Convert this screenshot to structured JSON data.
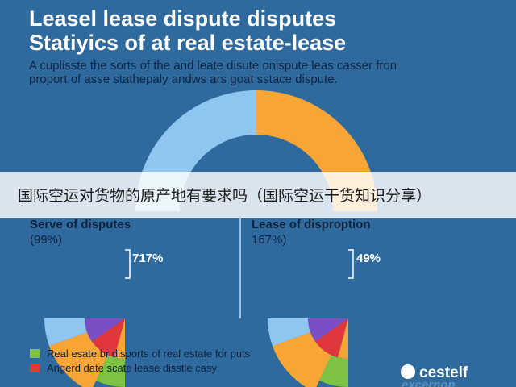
{
  "header": {
    "title": [
      "Leasel lease dispute disputes",
      "Statiyics of at real estate-lease"
    ],
    "subtitle": [
      "A cuplisste the sorts of the and leate disute onispute leas casser fron",
      "proport of asse stathepaly andws ars goat sstace dispute."
    ]
  },
  "banner": {
    "text": "国际空运对货物的原产地有要求吗（国际空运干货知识分享）"
  },
  "panels": [
    {
      "title": "Serve of disputes",
      "percent": "(99%)",
      "callout": "717%"
    },
    {
      "title": "Lease of disproption",
      "percent": "167%)",
      "callout": "49%"
    }
  ],
  "legend": [
    "Real esate br disports of real estate for puts",
    "Angerd date scate lease disstle casy"
  ],
  "logo": {
    "name": "cestelf",
    "tagline": "excernon"
  }
}
